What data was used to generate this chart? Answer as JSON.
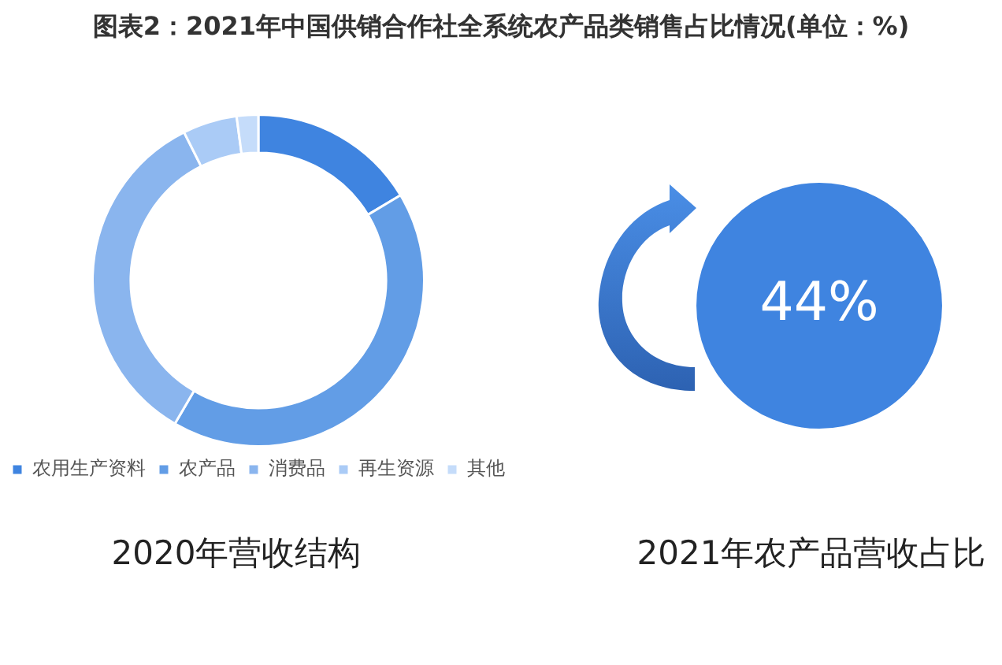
{
  "chart_data": [
    {
      "type": "donut",
      "title": "图表2：2021年中国供销合作社全系统农产品类销售占比情况(单位：%)",
      "subtitle": "2020年营收结构",
      "categories": [
        "农用生产资料",
        "农产品",
        "消费品",
        "再生资源",
        "其他"
      ],
      "values": [
        16.4,
        42,
        34.2,
        5.3,
        2.1
      ],
      "colors": [
        "#3f84e0",
        "#629de6",
        "#8ab5ee",
        "#aacbf6",
        "#c5dcfa"
      ],
      "legend": "bottom"
    },
    {
      "type": "other",
      "title": "2021年农产品营收占比",
      "values": [
        44
      ],
      "value_labels": [
        "44%"
      ],
      "color": "#3f84e0"
    }
  ]
}
